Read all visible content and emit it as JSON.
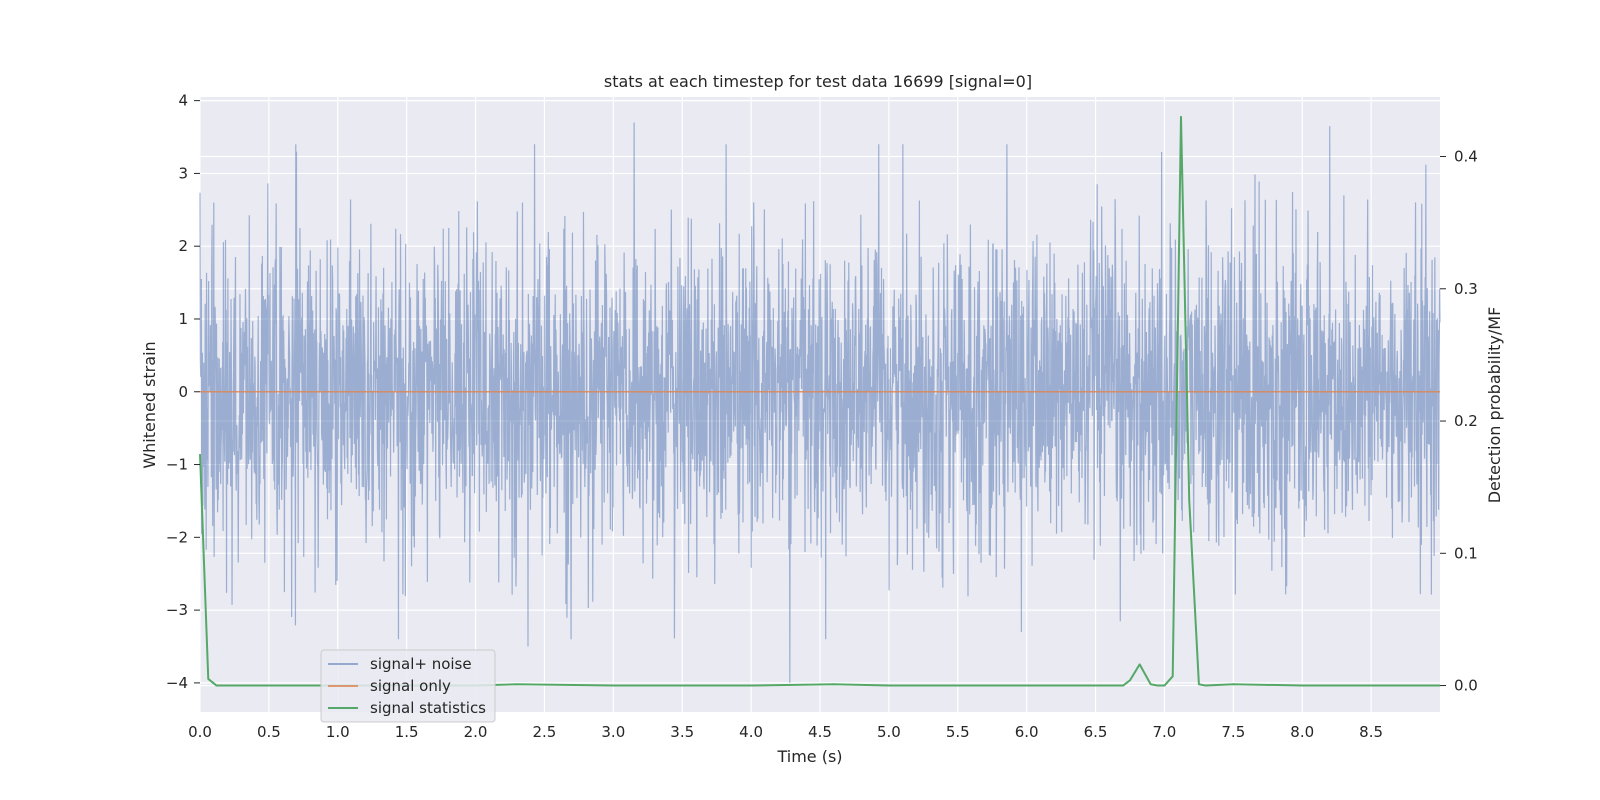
{
  "chart_data": {
    "type": "line",
    "title": "stats at each timestep for test data 16699 [signal=0]",
    "xlabel": "Time (s)",
    "ylabel": "Whitened strain",
    "ylabel_right": "Detection probability/MF",
    "xlim": [
      0.0,
      9.0
    ],
    "ylim": [
      -4.4,
      4.05
    ],
    "ylim_right": [
      -0.02,
      0.445
    ],
    "x_ticks": [
      "0.0",
      "0.5",
      "1.0",
      "1.5",
      "2.0",
      "2.5",
      "3.0",
      "3.5",
      "4.0",
      "4.5",
      "5.0",
      "5.5",
      "6.0",
      "6.5",
      "7.0",
      "7.5",
      "8.0",
      "8.5"
    ],
    "y_ticks": [
      "4",
      "3",
      "2",
      "1",
      "0",
      "−1",
      "−2",
      "−3",
      "−4"
    ],
    "y_ticks_right": [
      "0.4",
      "0.3",
      "0.2",
      "0.1",
      "0.0"
    ],
    "grid": true,
    "legend_position": "lower-left",
    "legend": [
      "signal+ noise",
      "signal only",
      "signal statistics"
    ],
    "colors": {
      "signal_noise": "#4c72b0",
      "signal_only": "#dd8452",
      "signal_statistics": "#55a868",
      "plot_background": "#eaeaf2",
      "grid": "#ffffff"
    },
    "series": [
      {
        "name": "signal+ noise",
        "axis": "left",
        "description_values": "whitened noise, roughly within -3.5 to 3.7, with a dip to -4.0 near 4.28 s",
        "envelope_peaks": [
          [
            0.1,
            2.6
          ],
          [
            0.7,
            3.3
          ],
          [
            3.15,
            3.7
          ],
          [
            8.2,
            3.65
          ],
          [
            4.28,
            -4.0
          ],
          [
            2.38,
            -3.5
          ]
        ]
      },
      {
        "name": "signal only",
        "axis": "left",
        "x": [
          0.0,
          9.0
        ],
        "y": [
          0.0,
          0.0
        ]
      },
      {
        "name": "signal statistics",
        "axis": "right",
        "x": [
          0.0,
          0.06,
          0.12,
          0.5,
          1.0,
          2.0,
          2.3,
          3.0,
          4.0,
          4.6,
          5.0,
          6.0,
          6.5,
          6.7,
          6.75,
          6.82,
          6.9,
          6.95,
          7.0,
          7.06,
          7.12,
          7.18,
          7.25,
          7.3,
          7.5,
          8.0,
          9.0
        ],
        "y": [
          0.175,
          0.005,
          0.0,
          0.0,
          0.0,
          0.0,
          0.001,
          0.0,
          0.0,
          0.001,
          0.0,
          0.0,
          0.0,
          0.0,
          0.004,
          0.016,
          0.001,
          0.0,
          0.0,
          0.007,
          0.43,
          0.14,
          0.001,
          0.0,
          0.001,
          0.0,
          0.0
        ]
      }
    ]
  }
}
